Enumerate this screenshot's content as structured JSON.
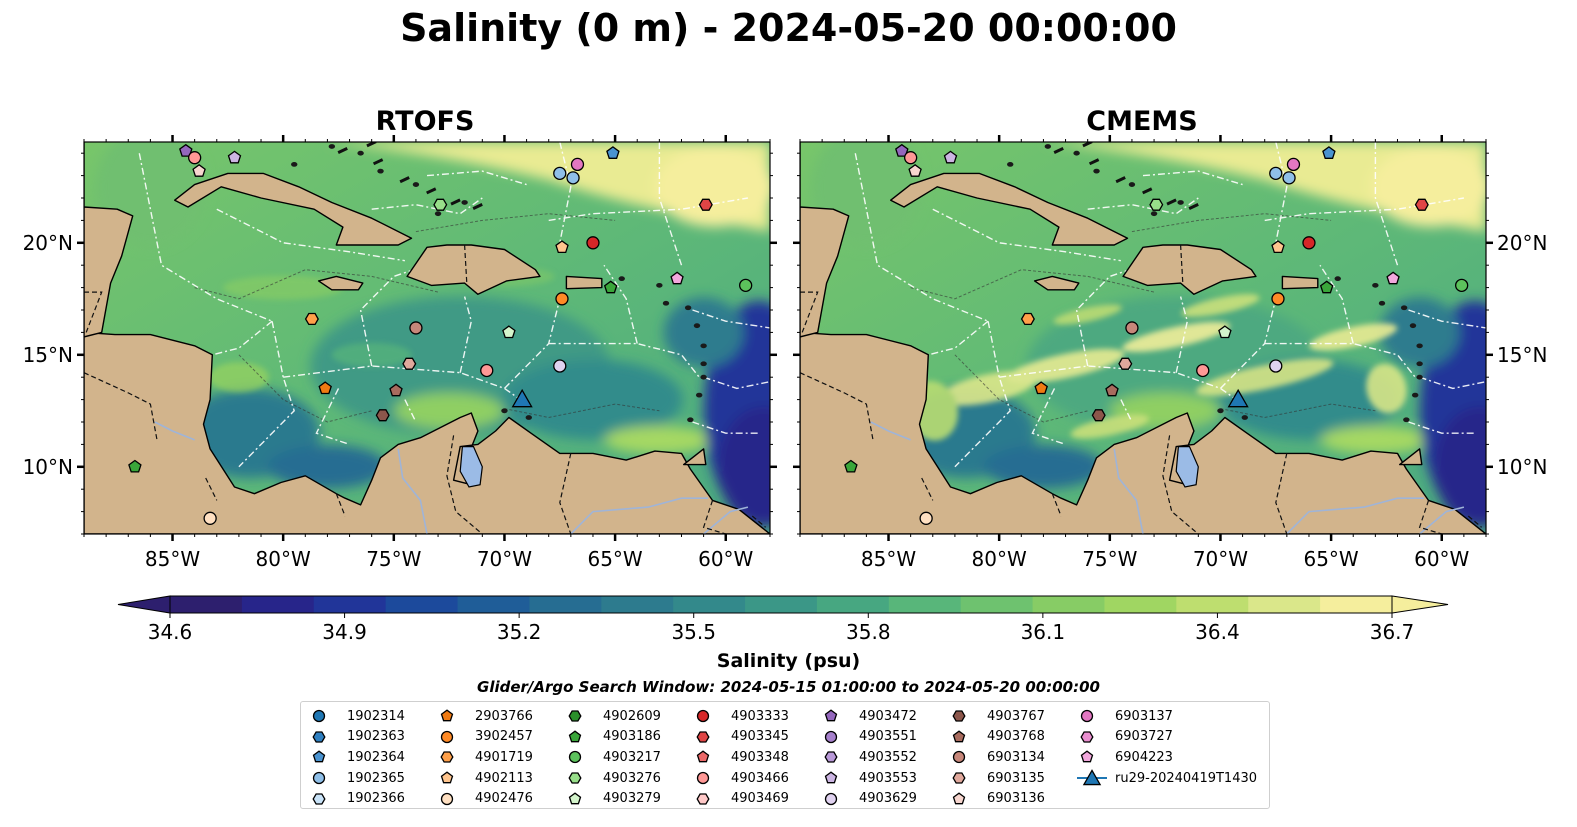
{
  "title": "Salinity (0 m) - 2024-05-20 00:00:00",
  "panels": [
    {
      "title": "RTOFS",
      "seed": 1
    },
    {
      "title": "CMEMS",
      "seed": 2
    }
  ],
  "map": {
    "lon_range": [
      -89,
      -58
    ],
    "lat_range": [
      7,
      24.5
    ],
    "x_ticks": [
      {
        "v": -85,
        "label": "85°W"
      },
      {
        "v": -80,
        "label": "80°W"
      },
      {
        "v": -75,
        "label": "75°W"
      },
      {
        "v": -70,
        "label": "70°W"
      },
      {
        "v": -65,
        "label": "65°W"
      },
      {
        "v": -60,
        "label": "60°W"
      }
    ],
    "y_ticks": [
      {
        "v": 10,
        "label": "10°N"
      },
      {
        "v": 15,
        "label": "15°N"
      },
      {
        "v": 20,
        "label": "20°N"
      }
    ],
    "land_color": "#d2b48c",
    "deep_color": "#2b1d69"
  },
  "colorbar": {
    "label": "Salinity (psu)",
    "min": 34.6,
    "max": 36.7,
    "ticks": [
      "34.6",
      "34.9",
      "35.2",
      "35.5",
      "35.8",
      "36.1",
      "36.4",
      "36.7"
    ],
    "colors": [
      "#2d1f6e",
      "#27258a",
      "#213599",
      "#1c4a9c",
      "#1f5d98",
      "#266d92",
      "#2d7b8e",
      "#33898b",
      "#3b9787",
      "#47a781",
      "#58b67a",
      "#6ec26f",
      "#87cc65",
      "#a0d662",
      "#bede6f",
      "#dae78a",
      "#f5ee9d"
    ]
  },
  "search_window": "Glider/Argo Search Window: 2024-05-15 01:00:00 to 2024-05-20 00:00:00",
  "legend": {
    "columns": [
      [
        {
          "label": "1902314",
          "marker": "circle",
          "color": "#1f77b4"
        },
        {
          "label": "1902363",
          "marker": "hexagon",
          "color": "#2f7fc0"
        },
        {
          "label": "1902364",
          "marker": "pentagon",
          "color": "#4a93d0"
        },
        {
          "label": "1902365",
          "marker": "circle",
          "color": "#8fbfe8"
        },
        {
          "label": "1902366",
          "marker": "hexagon",
          "color": "#c9e3f8"
        }
      ],
      [
        {
          "label": "2903766",
          "marker": "pentagon",
          "color": "#f07a12"
        },
        {
          "label": "3902457",
          "marker": "circle",
          "color": "#ff8a26"
        },
        {
          "label": "4901719",
          "marker": "hexagon",
          "color": "#ffa04a"
        },
        {
          "label": "4902113",
          "marker": "pentagon",
          "color": "#ffc58e"
        },
        {
          "label": "4902476",
          "marker": "circle",
          "color": "#ffe0c2"
        }
      ],
      [
        {
          "label": "4902609",
          "marker": "hexagon",
          "color": "#2a8f2a"
        },
        {
          "label": "4903186",
          "marker": "pentagon",
          "color": "#3aa63a"
        },
        {
          "label": "4903217",
          "marker": "circle",
          "color": "#5cc25c"
        },
        {
          "label": "4903276",
          "marker": "hexagon",
          "color": "#98df8a"
        },
        {
          "label": "4903279",
          "marker": "pentagon",
          "color": "#d4f5cc"
        }
      ],
      [
        {
          "label": "4903333",
          "marker": "circle",
          "color": "#d62728"
        },
        {
          "label": "4903345",
          "marker": "hexagon",
          "color": "#e04545"
        },
        {
          "label": "4903348",
          "marker": "pentagon",
          "color": "#eb6868"
        },
        {
          "label": "4903466",
          "marker": "circle",
          "color": "#ff9896"
        },
        {
          "label": "4903469",
          "marker": "hexagon",
          "color": "#ffc9c8"
        }
      ],
      [
        {
          "label": "4903472",
          "marker": "pentagon",
          "color": "#9467bd"
        },
        {
          "label": "4903551",
          "marker": "circle",
          "color": "#a680cc"
        },
        {
          "label": "4903552",
          "marker": "hexagon",
          "color": "#b999d8"
        },
        {
          "label": "4903553",
          "marker": "pentagon",
          "color": "#ccb5e3"
        },
        {
          "label": "4903629",
          "marker": "circle",
          "color": "#e0d2f0"
        }
      ],
      [
        {
          "label": "4903767",
          "marker": "hexagon",
          "color": "#8c564b"
        },
        {
          "label": "4903768",
          "marker": "pentagon",
          "color": "#a86b5e"
        },
        {
          "label": "6903134",
          "marker": "circle",
          "color": "#c7877a"
        },
        {
          "label": "6903135",
          "marker": "hexagon",
          "color": "#e0a89c"
        },
        {
          "label": "6903136",
          "marker": "pentagon",
          "color": "#f7d6cf"
        }
      ],
      [
        {
          "label": "6903137",
          "marker": "circle",
          "color": "#e377c2"
        },
        {
          "label": "6903727",
          "marker": "hexagon",
          "color": "#ea8fd0"
        },
        {
          "label": "6904223",
          "marker": "pentagon",
          "color": "#f2a8dd"
        },
        {
          "label": "ru29-20240419T1430",
          "marker": "triangle-line",
          "color": "#1f77b4"
        }
      ]
    ]
  },
  "floats": [
    {
      "id": "4903472",
      "lon": -84.4,
      "lat": 24.1
    },
    {
      "id": "4903466",
      "lon": -84.0,
      "lat": 23.8
    },
    {
      "id": "6903136",
      "lon": -83.8,
      "lat": 23.2
    },
    {
      "id": "4903553",
      "lon": -82.2,
      "lat": 23.8
    },
    {
      "id": "4903276",
      "lon": -72.9,
      "lat": 21.7
    },
    {
      "id": "1902365",
      "lon": -67.5,
      "lat": 23.1
    },
    {
      "id": "1902365",
      "lon": -66.9,
      "lat": 22.9
    },
    {
      "id": "6903137",
      "lon": -66.7,
      "lat": 23.5
    },
    {
      "id": "1902364",
      "lon": -65.1,
      "lat": 24.0
    },
    {
      "id": "4903345",
      "lon": -60.9,
      "lat": 21.7
    },
    {
      "id": "4902113",
      "lon": -67.4,
      "lat": 19.8
    },
    {
      "id": "4903333",
      "lon": -66.0,
      "lat": 20.0
    },
    {
      "id": "6904223",
      "lon": -62.2,
      "lat": 18.4
    },
    {
      "id": "4903217",
      "lon": -59.1,
      "lat": 18.1
    },
    {
      "id": "4903186",
      "lon": -65.2,
      "lat": 18.0
    },
    {
      "id": "3902457",
      "lon": -67.4,
      "lat": 17.5
    },
    {
      "id": "4901719",
      "lon": -78.7,
      "lat": 16.6
    },
    {
      "id": "6903134",
      "lon": -74.0,
      "lat": 16.2
    },
    {
      "id": "4903279",
      "lon": -69.8,
      "lat": 16.0
    },
    {
      "id": "6903135",
      "lon": -74.3,
      "lat": 14.6
    },
    {
      "id": "4903466",
      "lon": -70.8,
      "lat": 14.3
    },
    {
      "id": "4903629",
      "lon": -67.5,
      "lat": 14.5
    },
    {
      "id": "2903766",
      "lon": -78.1,
      "lat": 13.5
    },
    {
      "id": "4903768",
      "lon": -74.9,
      "lat": 13.4
    },
    {
      "id": "4903767",
      "lon": -75.5,
      "lat": 12.3
    },
    {
      "id": "4903186",
      "lon": -86.7,
      "lat": 10.0
    },
    {
      "id": "4902476",
      "lon": -83.3,
      "lat": 7.7
    }
  ],
  "glider": {
    "id": "ru29-20240419T1430",
    "lon": -69.2,
    "lat": 13.0
  }
}
